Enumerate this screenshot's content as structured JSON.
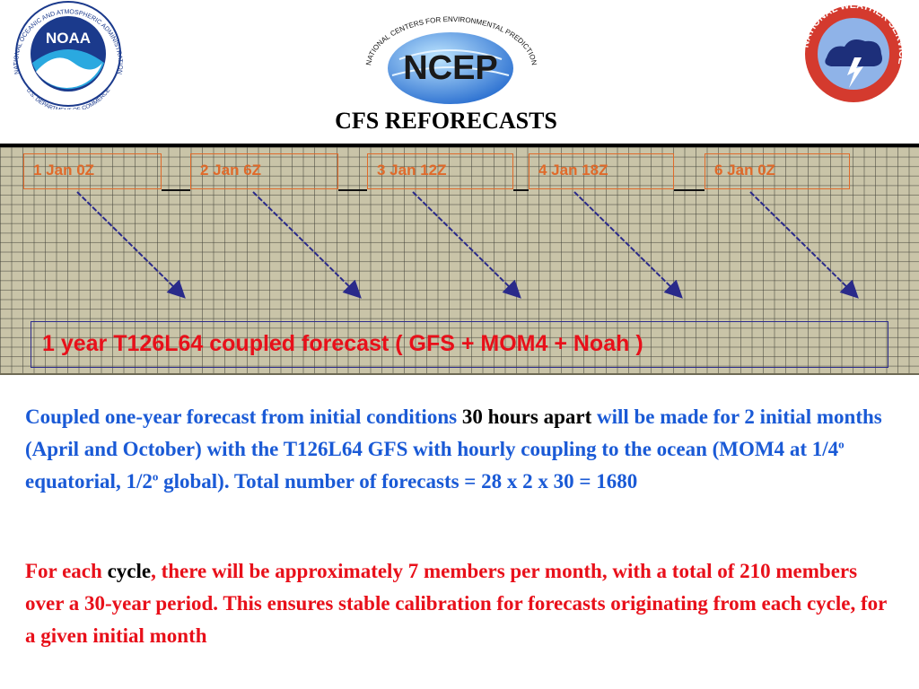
{
  "slide": {
    "title": "CFS REFORECASTS"
  },
  "logos": {
    "noaa": {
      "name": "NOAA",
      "ring_text": "NATIONAL OCEANIC AND ATMOSPHERIC ADMINISTRATION",
      "bottom_text": "U.S. DEPARTMENT OF COMMERCE"
    },
    "ncep": {
      "name": "NCEP",
      "ring_text": "NATIONAL CENTERS FOR ENVIRONMENTAL PREDICTION"
    },
    "nws": {
      "ring_text": "NATIONAL WEATHER SERVICE"
    }
  },
  "timeline": {
    "dates": [
      "1 Jan 0Z",
      "2 Jan 6Z",
      "3 Jan 12Z",
      "4 Jan 18Z",
      "6 Jan 0Z"
    ],
    "forecast_label": "1 year T126L64 coupled forecast ( GFS + MOM4 + Noah )"
  },
  "paragraph1": {
    "part1": "Coupled one-year forecast from initial conditions ",
    "highlight": "30 hours apart",
    "part2": " will be made for 2 initial months (April and October) with the T126L64 GFS with hourly coupling to the ocean (MOM4 at 1/4",
    "sup1": "o",
    "part3": " equatorial, 1/2",
    "sup2": "o",
    "part4": " global). Total number of forecasts = 28 x 2 x 30 = 1680"
  },
  "paragraph2": {
    "part1": "For each ",
    "highlight": "cycle",
    "part2": ", there will be approximately 7 members per month, with a total of 210 members over a 30-year period. This ensures stable calibration for forecasts originating from each cycle, for a given initial month"
  },
  "colors": {
    "blue_text": "#1a5ad6",
    "red_text": "#e8101a",
    "date_orange": "#e06a2a",
    "arrow_blue": "#2a2a8a",
    "grid_bg": "#c9c4a8"
  }
}
